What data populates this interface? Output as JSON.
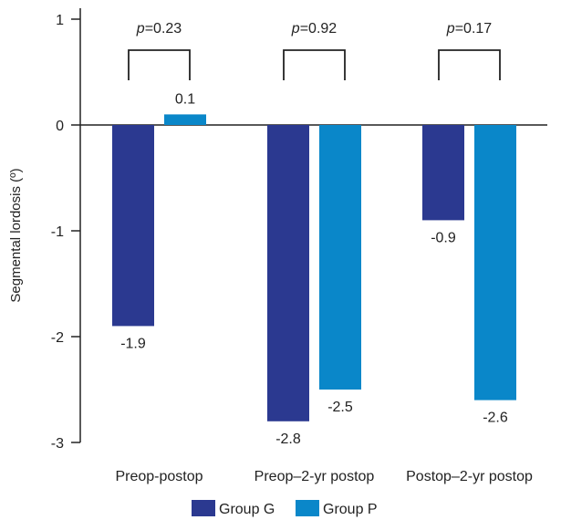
{
  "chart_data": {
    "type": "bar",
    "title": "",
    "xlabel": "",
    "ylabel": "Segmental lordosis (º)",
    "ylim": [
      -3,
      1
    ],
    "yticks": [
      1,
      0,
      -1,
      -2,
      -3
    ],
    "categories": [
      "Preop-postop",
      "Preop–2-yr postop",
      "Postop–2-yr postop"
    ],
    "series": [
      {
        "name": "Group G",
        "color": "#2b3990",
        "values": [
          -1.9,
          -2.8,
          -0.9
        ],
        "labels": [
          "-1.9",
          "-2.8",
          "-0.9"
        ]
      },
      {
        "name": "Group P",
        "color": "#0a87c9",
        "values": [
          0.1,
          -2.5,
          -2.6
        ],
        "labels": [
          "0.1",
          "-2.5",
          "-2.6"
        ]
      }
    ],
    "annotations": [
      {
        "p_symbol": "p",
        "p_value": "=0.23"
      },
      {
        "p_symbol": "p",
        "p_value": "=0.92"
      },
      {
        "p_symbol": "p",
        "p_value": "=0.17"
      }
    ],
    "grid": false,
    "legend_position": "bottom"
  }
}
